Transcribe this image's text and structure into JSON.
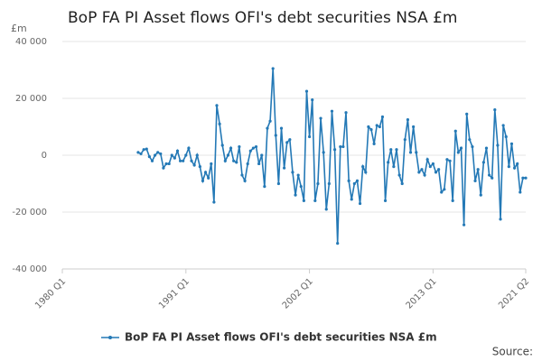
{
  "chart_data": {
    "type": "line",
    "title": "BoP FA PI Asset flows OFI's debt securities NSA £m",
    "y_unit": "£m",
    "source": "Source:",
    "categories": [
      "1980 Q1",
      null,
      null,
      null,
      null,
      null,
      null,
      null,
      null,
      null,
      null,
      null,
      null,
      null,
      null,
      null,
      null,
      null,
      null,
      null,
      null,
      null,
      null,
      null,
      null,
      null,
      null,
      null,
      null,
      null,
      null,
      null,
      null,
      null,
      null,
      null,
      null,
      null,
      null,
      null,
      null,
      null,
      null,
      null,
      "1991 Q1",
      null,
      null,
      null,
      null,
      null,
      null,
      null,
      null,
      null,
      null,
      null,
      null,
      null,
      null,
      null,
      null,
      null,
      null,
      null,
      null,
      null,
      null,
      null,
      null,
      null,
      null,
      null,
      null,
      null,
      null,
      null,
      null,
      null,
      null,
      null,
      null,
      null,
      null,
      null,
      null,
      null,
      null,
      null,
      "2002 Q1",
      null,
      null,
      null,
      null,
      null,
      null,
      null,
      null,
      null,
      null,
      null,
      null,
      null,
      null,
      null,
      null,
      null,
      null,
      null,
      null,
      null,
      null,
      null,
      null,
      null,
      null,
      null,
      null,
      null,
      null,
      null,
      null,
      null,
      null,
      null,
      null,
      null,
      null,
      null,
      null,
      null,
      null,
      null,
      "2013 Q1",
      null,
      null,
      null,
      null,
      null,
      null,
      null,
      null,
      null,
      null,
      null,
      null,
      null,
      null,
      null,
      null,
      null,
      null,
      null,
      null,
      null,
      null,
      null,
      null,
      null,
      null,
      null,
      null,
      null,
      null,
      null,
      null,
      "2021 Q2"
    ],
    "series": [
      {
        "name": "BoP FA PI Asset flows OFI's debt securities NSA £m",
        "color": "#2479b6",
        "values": [
          null,
          null,
          null,
          null,
          null,
          null,
          null,
          null,
          null,
          null,
          null,
          null,
          null,
          null,
          null,
          null,
          null,
          null,
          null,
          null,
          null,
          null,
          null,
          null,
          null,
          null,
          null,
          1000,
          500,
          2000,
          2200,
          -500,
          -2000,
          0,
          1000,
          500,
          -4500,
          -3000,
          -3000,
          0,
          -1000,
          1500,
          -2000,
          -2000,
          0,
          2500,
          -2000,
          -3500,
          0,
          -4000,
          -9000,
          -6000,
          -8000,
          -3000,
          -16500,
          17500,
          11000,
          3500,
          -2000,
          0,
          2500,
          -2000,
          -2500,
          3000,
          -7000,
          -9000,
          -3000,
          1500,
          2500,
          3000,
          -3000,
          0,
          -11000,
          9500,
          12000,
          30500,
          7000,
          -10000,
          9500,
          -4500,
          4500,
          5500,
          -6000,
          -14000,
          -7000,
          -11000,
          -16000,
          22500,
          6500,
          19500,
          -16000,
          -10000,
          13000,
          1000,
          -19000,
          -10000,
          15500,
          2000,
          -31000,
          3000,
          3000,
          15000,
          -9000,
          -15500,
          -10000,
          -9000,
          -17000,
          -4000,
          -6000,
          10000,
          9000,
          4000,
          10500,
          10000,
          13500,
          -16000,
          -2500,
          2000,
          -4000,
          2000,
          -7000,
          -10000,
          5500,
          12500,
          1000,
          10000,
          1000,
          -6000,
          -5000,
          -7000,
          -1500,
          -4000,
          -3000,
          -6000,
          -5000,
          -13000,
          -12000,
          -1500,
          -2000,
          -16000,
          8500,
          1000,
          2500,
          -24500,
          14500,
          5500,
          3000,
          -9000,
          -5000,
          -14000,
          -2500,
          2500,
          -7000,
          -8000,
          16000,
          3500,
          -22500,
          10500,
          6500,
          -4000,
          4000,
          -4500,
          -3000,
          -13000,
          -8000,
          -8000
        ]
      }
    ],
    "ylim": [
      -40000,
      40000
    ],
    "yticks": [
      {
        "value": -40000,
        "label": "-40 000"
      },
      {
        "value": -20000,
        "label": "-20 000"
      },
      0,
      {
        "value": 20000,
        "label": "20 000"
      },
      {
        "value": 40000,
        "label": "40 000"
      }
    ],
    "grid": true
  }
}
